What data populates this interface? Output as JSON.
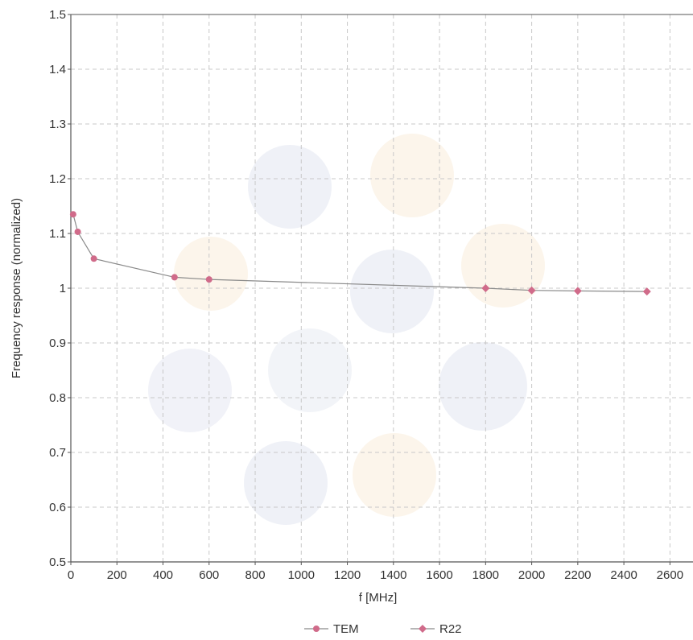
{
  "colors": {
    "series": "#d06b8a",
    "line": "#8a8a8a",
    "grid": "#c8c8c8",
    "axis": "#555555"
  },
  "chart_data": {
    "type": "line",
    "title": "",
    "xlabel": "f [MHz]",
    "ylabel": "Frequency response (normalized)",
    "xlim": [
      0,
      2700
    ],
    "ylim": [
      0.5,
      1.5
    ],
    "xticks": [
      0,
      200,
      400,
      600,
      800,
      1000,
      1200,
      1400,
      1600,
      1800,
      2000,
      2200,
      2400,
      2600
    ],
    "yticks": [
      0.5,
      0.6,
      0.7,
      0.8,
      0.9,
      1,
      1.1,
      1.2,
      1.3,
      1.4,
      1.5
    ],
    "xtick_labels": [
      "0",
      "200",
      "400",
      "600",
      "800",
      "1000",
      "1200",
      "1400",
      "1600",
      "1800",
      "2000",
      "2200",
      "2400",
      "2600"
    ],
    "ytick_labels": [
      "0.5",
      "0.6",
      "0.7",
      "0.8",
      "0.9",
      "1",
      "1.1",
      "1.2",
      "1.3",
      "1.4",
      "1.5"
    ],
    "grid": true,
    "legend_position": "bottom-center",
    "series": [
      {
        "name": "TEM",
        "marker": "circle",
        "x": [
          10,
          30,
          100,
          450,
          600
        ],
        "y": [
          1.135,
          1.103,
          1.054,
          1.02,
          1.016
        ]
      },
      {
        "name": "R22",
        "marker": "diamond",
        "x": [
          1800,
          2000,
          2200,
          2500
        ],
        "y": [
          1.0,
          0.996,
          0.995,
          0.994
        ]
      }
    ]
  }
}
